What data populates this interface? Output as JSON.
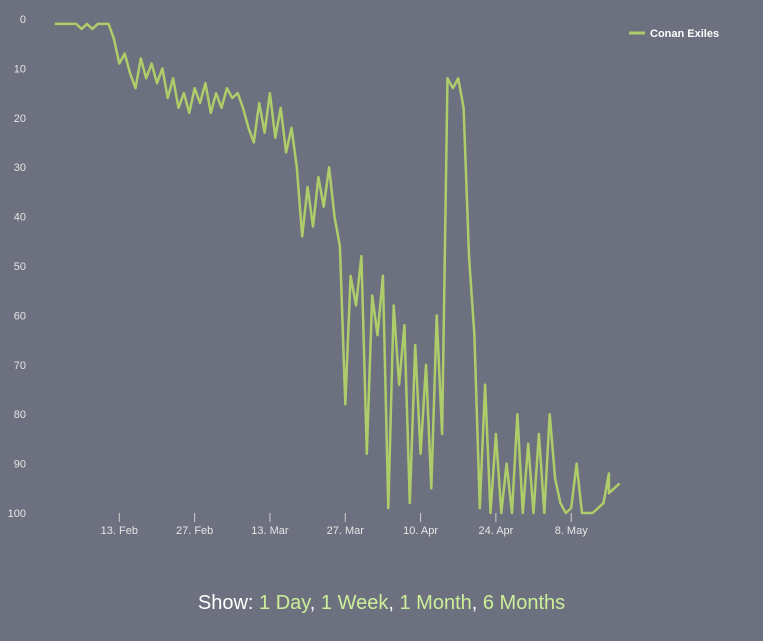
{
  "chart_data": {
    "type": "line",
    "title": "",
    "xlabel": "",
    "ylabel": "",
    "y_reversed": true,
    "ylim": [
      0,
      100
    ],
    "yticks": [
      0,
      10,
      20,
      30,
      40,
      50,
      60,
      70,
      80,
      90,
      100
    ],
    "xlim": [
      "2017-01-30",
      "2017-05-18"
    ],
    "xticks": [
      {
        "date": "2017-02-13",
        "label": "13. Feb"
      },
      {
        "date": "2017-02-27",
        "label": "27. Feb"
      },
      {
        "date": "2017-03-13",
        "label": "13. Mar"
      },
      {
        "date": "2017-03-27",
        "label": "27. Mar"
      },
      {
        "date": "2017-04-10",
        "label": "10. Apr"
      },
      {
        "date": "2017-04-24",
        "label": "24. Apr"
      },
      {
        "date": "2017-05-08",
        "label": "8. May"
      }
    ],
    "grid": false,
    "legend": {
      "position": "top-right"
    },
    "series": [
      {
        "name": "Conan Exiles",
        "color": "#aecd6a",
        "points": [
          [
            "2017-02-01",
            1
          ],
          [
            "2017-02-03",
            1
          ],
          [
            "2017-02-05",
            1
          ],
          [
            "2017-02-06",
            2
          ],
          [
            "2017-02-07",
            1
          ],
          [
            "2017-02-08",
            2
          ],
          [
            "2017-02-09",
            1
          ],
          [
            "2017-02-11",
            1
          ],
          [
            "2017-02-12",
            4
          ],
          [
            "2017-02-13",
            9
          ],
          [
            "2017-02-14",
            7
          ],
          [
            "2017-02-15",
            11
          ],
          [
            "2017-02-16",
            14
          ],
          [
            "2017-02-17",
            8
          ],
          [
            "2017-02-18",
            12
          ],
          [
            "2017-02-19",
            9
          ],
          [
            "2017-02-20",
            13
          ],
          [
            "2017-02-21",
            10
          ],
          [
            "2017-02-22",
            16
          ],
          [
            "2017-02-23",
            12
          ],
          [
            "2017-02-24",
            18
          ],
          [
            "2017-02-25",
            15
          ],
          [
            "2017-02-26",
            19
          ],
          [
            "2017-02-27",
            14
          ],
          [
            "2017-02-28",
            17
          ],
          [
            "2017-03-01",
            13
          ],
          [
            "2017-03-02",
            19
          ],
          [
            "2017-03-03",
            15
          ],
          [
            "2017-03-04",
            18
          ],
          [
            "2017-03-05",
            14
          ],
          [
            "2017-03-06",
            16
          ],
          [
            "2017-03-07",
            15
          ],
          [
            "2017-03-08",
            18
          ],
          [
            "2017-03-09",
            22
          ],
          [
            "2017-03-10",
            25
          ],
          [
            "2017-03-11",
            17
          ],
          [
            "2017-03-12",
            23
          ],
          [
            "2017-03-13",
            15
          ],
          [
            "2017-03-14",
            24
          ],
          [
            "2017-03-15",
            18
          ],
          [
            "2017-03-16",
            27
          ],
          [
            "2017-03-17",
            22
          ],
          [
            "2017-03-18",
            30
          ],
          [
            "2017-03-19",
            44
          ],
          [
            "2017-03-20",
            34
          ],
          [
            "2017-03-21",
            42
          ],
          [
            "2017-03-22",
            32
          ],
          [
            "2017-03-23",
            38
          ],
          [
            "2017-03-24",
            30
          ],
          [
            "2017-03-25",
            40
          ],
          [
            "2017-03-26",
            46
          ],
          [
            "2017-03-27",
            78
          ],
          [
            "2017-03-28",
            52
          ],
          [
            "2017-03-29",
            58
          ],
          [
            "2017-03-30",
            48
          ],
          [
            "2017-03-31",
            88
          ],
          [
            "2017-04-01",
            56
          ],
          [
            "2017-04-02",
            64
          ],
          [
            "2017-04-03",
            52
          ],
          [
            "2017-04-04",
            99
          ],
          [
            "2017-04-05",
            58
          ],
          [
            "2017-04-06",
            74
          ],
          [
            "2017-04-07",
            62
          ],
          [
            "2017-04-08",
            98
          ],
          [
            "2017-04-09",
            66
          ],
          [
            "2017-04-10",
            88
          ],
          [
            "2017-04-11",
            70
          ],
          [
            "2017-04-12",
            95
          ],
          [
            "2017-04-13",
            60
          ],
          [
            "2017-04-14",
            84
          ],
          [
            "2017-04-15",
            12
          ],
          [
            "2017-04-16",
            14
          ],
          [
            "2017-04-17",
            12
          ],
          [
            "2017-04-18",
            18
          ],
          [
            "2017-04-19",
            48
          ],
          [
            "2017-04-20",
            64
          ],
          [
            "2017-04-21",
            99
          ],
          [
            "2017-04-22",
            74
          ],
          [
            "2017-04-23",
            100
          ],
          [
            "2017-04-24",
            84
          ],
          [
            "2017-04-25",
            100
          ],
          [
            "2017-04-26",
            90
          ],
          [
            "2017-04-27",
            100
          ],
          [
            "2017-04-28",
            80
          ],
          [
            "2017-04-29",
            100
          ],
          [
            "2017-04-30",
            86
          ],
          [
            "2017-05-01",
            100
          ],
          [
            "2017-05-02",
            84
          ],
          [
            "2017-05-03",
            100
          ],
          [
            "2017-05-04",
            80
          ],
          [
            "2017-05-05",
            93
          ],
          [
            "2017-05-06",
            98
          ],
          [
            "2017-05-07",
            100
          ],
          [
            "2017-05-08",
            99
          ],
          [
            "2017-05-09",
            90
          ],
          [
            "2017-05-10",
            100
          ],
          [
            "2017-05-11",
            100
          ],
          [
            "2017-05-12",
            100
          ],
          [
            "2017-05-13",
            99
          ],
          [
            "2017-05-14",
            98
          ],
          [
            "2017-05-15",
            92
          ],
          [
            "2017-05-15",
            96
          ],
          [
            "2017-05-16",
            95
          ],
          [
            "2017-05-17",
            94
          ]
        ]
      }
    ]
  },
  "show_bar": {
    "prefix": "Show: ",
    "links": [
      "1 Day",
      "1 Week",
      "1 Month",
      "6 Months"
    ],
    "link_color": "#ccf09a"
  }
}
